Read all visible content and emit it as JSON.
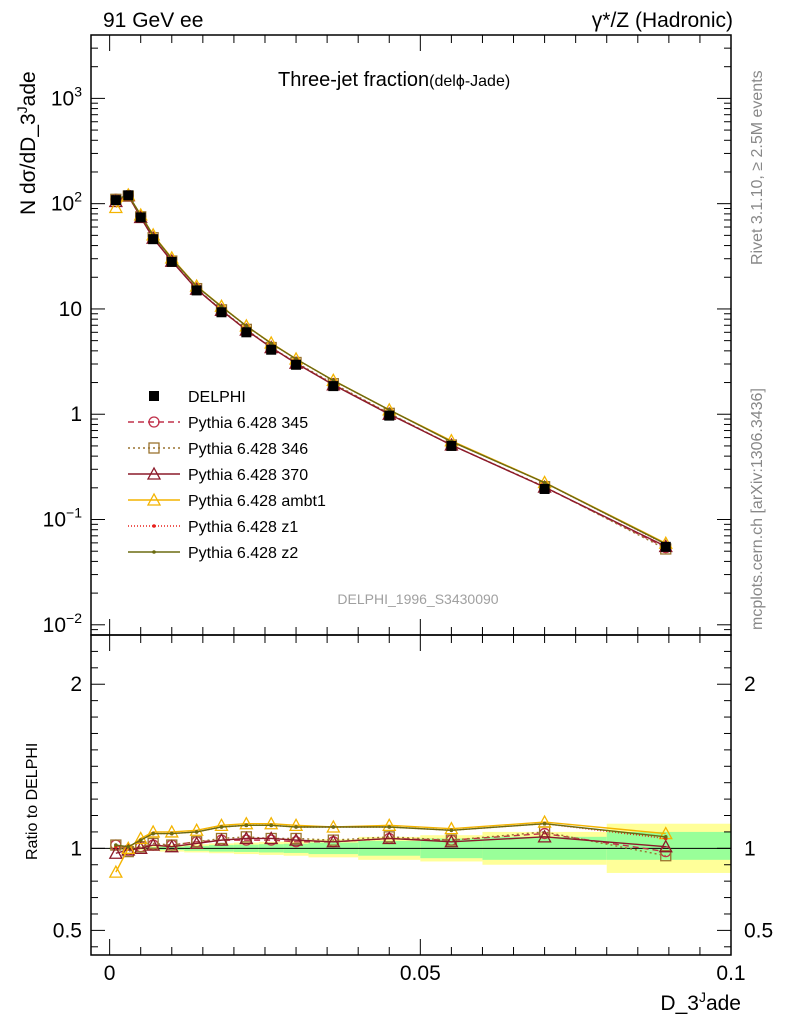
{
  "header": {
    "left": "91 GeV ee",
    "right": "γ*/Z (Hadronic)"
  },
  "side": {
    "rivet": "Rivet 3.1.10, ≥ 2.5M events",
    "mcplots": "mcplots.cern.ch [arXiv:1306.3436]"
  },
  "main_title": "Three-jet fraction",
  "main_subtitle": "(delϕ-Jade)",
  "analysis_label": "DELPHI_1996_S3430090",
  "colors": {
    "DELPHI": "#000000",
    "Pythia 6.428 345": "#c0304a",
    "Pythia 6.428 346": "#9a7430",
    "Pythia 6.428 370": "#8b1a2a",
    "Pythia 6.428 ambt1": "#f4b400",
    "Pythia 6.428 z1": "#e8201c",
    "Pythia 6.428 z2": "#6b6b10",
    "band_inner": "#99ff99",
    "band_outer": "#ffff99"
  },
  "chart_data": [
    {
      "type": "line",
      "panel": "main",
      "xlabel": "D_3^Jade",
      "ylabel": "N dσ/dD_3^Jade",
      "xlim": [
        -0.003,
        0.1
      ],
      "ylim": [
        0.008,
        4000
      ],
      "log_y": true,
      "yticks": [
        {
          "v": 1000,
          "b": "10",
          "e": "3"
        },
        {
          "v": 100,
          "b": "10",
          "e": "2"
        },
        {
          "v": 10,
          "b": "10",
          "e": ""
        },
        {
          "v": 1,
          "b": "1",
          "e": ""
        },
        {
          "v": 0.1,
          "b": "10",
          "e": "−1"
        },
        {
          "v": 0.01,
          "b": "10",
          "e": "−2"
        }
      ],
      "x": [
        0.001,
        0.003,
        0.005,
        0.007,
        0.01,
        0.014,
        0.018,
        0.022,
        0.026,
        0.03,
        0.036,
        0.045,
        0.055,
        0.07,
        0.0895
      ],
      "data": {
        "name": "DELPHI",
        "values": [
          108,
          120,
          74,
          46,
          28,
          15,
          9.3,
          6.0,
          4.1,
          2.95,
          1.85,
          0.97,
          0.5,
          0.195,
          0.055
        ]
      },
      "series": [
        {
          "name": "Pythia 6.428 345",
          "marker": "circle",
          "dash": "6,4",
          "values": [
            110,
            120,
            75,
            47,
            28.6,
            15.5,
            9.7,
            6.3,
            4.3,
            3.05,
            1.92,
            1.01,
            0.51,
            0.203,
            0.054
          ]
        },
        {
          "name": "Pythia 6.428 346",
          "marker": "square",
          "dash": "2,3",
          "values": [
            110,
            118,
            75,
            47.5,
            28.5,
            15.6,
            9.8,
            6.4,
            4.3,
            3.1,
            1.95,
            1.02,
            0.51,
            0.205,
            0.0525
          ]
        },
        {
          "name": "Pythia 6.428 370",
          "marker": "triangle",
          "dash": "",
          "values": [
            105,
            119,
            74,
            47,
            28.4,
            15.4,
            9.7,
            6.3,
            4.3,
            3.05,
            1.9,
            1.0,
            0.51,
            0.203,
            0.0555
          ]
        },
        {
          "name": "Pythia 6.428 ambt1",
          "marker": "triangle",
          "dash": "",
          "values": [
            92,
            121,
            78,
            50.5,
            30.5,
            16.5,
            10.6,
            6.9,
            4.75,
            3.35,
            2.1,
            1.1,
            0.56,
            0.225,
            0.0595
          ]
        },
        {
          "name": "Pythia 6.428 z1",
          "marker": "dot",
          "dash": "1,2",
          "values": [
            109,
            121,
            78,
            50,
            30,
            16.4,
            10.5,
            6.9,
            4.7,
            3.35,
            2.08,
            1.1,
            0.55,
            0.224,
            0.058
          ]
        },
        {
          "name": "Pythia 6.428 z2",
          "marker": "dot",
          "dash": "",
          "values": [
            110,
            121,
            78,
            50,
            30,
            16.4,
            10.5,
            6.9,
            4.7,
            3.35,
            2.09,
            1.1,
            0.55,
            0.224,
            0.0585
          ]
        }
      ]
    },
    {
      "type": "line",
      "panel": "ratio",
      "xlabel": "D_3^Jade",
      "ylabel": "Ratio to DELPHI",
      "xlim": [
        -0.003,
        0.1
      ],
      "ylim": [
        0.35,
        2.3
      ],
      "yticks": [
        0.5,
        1,
        2
      ],
      "xticks": [
        0,
        0.05,
        0.1
      ],
      "xtick_labels": [
        "0",
        "0.05",
        "0.1"
      ],
      "band_edges": [
        0.0,
        0.002,
        0.004,
        0.006,
        0.008,
        0.012,
        0.016,
        0.02,
        0.024,
        0.028,
        0.032,
        0.04,
        0.05,
        0.06,
        0.08,
        0.1
      ],
      "band_inner": [
        [
          0.995,
          1.005
        ],
        [
          0.995,
          1.005
        ],
        [
          0.995,
          1.005
        ],
        [
          0.993,
          1.007
        ],
        [
          0.99,
          1.01
        ],
        [
          0.985,
          1.015
        ],
        [
          0.98,
          1.02
        ],
        [
          0.978,
          1.022
        ],
        [
          0.975,
          1.025
        ],
        [
          0.972,
          1.028
        ],
        [
          0.965,
          1.035
        ],
        [
          0.955,
          1.045
        ],
        [
          0.94,
          1.06
        ],
        [
          0.93,
          1.07
        ],
        [
          0.93,
          1.1
        ]
      ],
      "band_outer": [
        [
          0.99,
          1.01
        ],
        [
          0.99,
          1.01
        ],
        [
          0.988,
          1.012
        ],
        [
          0.985,
          1.015
        ],
        [
          0.98,
          1.02
        ],
        [
          0.975,
          1.025
        ],
        [
          0.97,
          1.03
        ],
        [
          0.965,
          1.035
        ],
        [
          0.96,
          1.04
        ],
        [
          0.955,
          1.045
        ],
        [
          0.945,
          1.055
        ],
        [
          0.93,
          1.07
        ],
        [
          0.92,
          1.08
        ],
        [
          0.9,
          1.1
        ],
        [
          0.85,
          1.15
        ]
      ],
      "x": [
        0.001,
        0.003,
        0.005,
        0.007,
        0.01,
        0.014,
        0.018,
        0.022,
        0.026,
        0.03,
        0.036,
        0.045,
        0.055,
        0.07,
        0.0895
      ],
      "series": [
        {
          "name": "Pythia 6.428 345",
          "values": [
            1.02,
            0.99,
            1.01,
            1.02,
            1.02,
            1.04,
            1.05,
            1.05,
            1.05,
            1.04,
            1.04,
            1.06,
            1.05,
            1.09,
            0.98
          ]
        },
        {
          "name": "Pythia 6.428 346",
          "values": [
            1.02,
            0.98,
            1.01,
            1.03,
            1.02,
            1.04,
            1.06,
            1.07,
            1.06,
            1.06,
            1.05,
            1.07,
            1.05,
            1.1,
            0.955
          ]
        },
        {
          "name": "Pythia 6.428 370",
          "values": [
            0.97,
            0.99,
            1.0,
            1.02,
            1.01,
            1.03,
            1.05,
            1.06,
            1.06,
            1.05,
            1.04,
            1.06,
            1.04,
            1.07,
            1.01
          ]
        },
        {
          "name": "Pythia 6.428 ambt1",
          "values": [
            0.855,
            1.0,
            1.06,
            1.1,
            1.1,
            1.11,
            1.14,
            1.15,
            1.15,
            1.14,
            1.13,
            1.14,
            1.12,
            1.16,
            1.09
          ]
        },
        {
          "name": "Pythia 6.428 z1",
          "values": [
            1.01,
            1.01,
            1.05,
            1.09,
            1.09,
            1.1,
            1.13,
            1.14,
            1.14,
            1.13,
            1.13,
            1.13,
            1.11,
            1.15,
            1.06
          ]
        },
        {
          "name": "Pythia 6.428 z2",
          "values": [
            1.02,
            1.01,
            1.05,
            1.09,
            1.09,
            1.1,
            1.13,
            1.14,
            1.14,
            1.13,
            1.13,
            1.13,
            1.11,
            1.15,
            1.07
          ]
        }
      ]
    }
  ]
}
